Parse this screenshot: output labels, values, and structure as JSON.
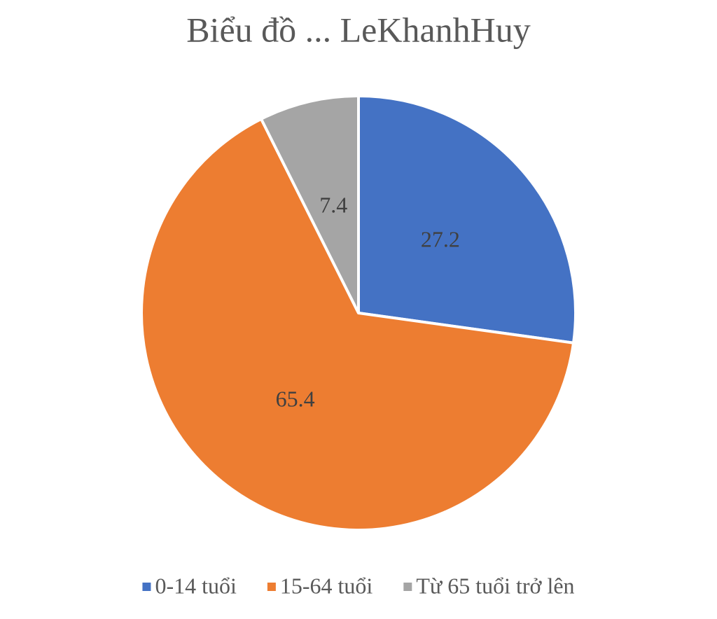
{
  "chart_data": {
    "type": "pie",
    "title": "Biểu đồ ... LeKhanhHuy",
    "categories": [
      "0-14 tuổi",
      "15-64 tuổi",
      "Từ 65 tuổi trở lên"
    ],
    "values": [
      27.2,
      65.4,
      7.4
    ],
    "colors": [
      "#4472c4",
      "#ed7d31",
      "#a5a5a5"
    ],
    "legend": "bottom"
  }
}
